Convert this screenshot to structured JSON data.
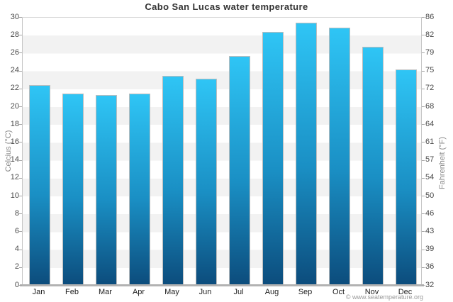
{
  "title": "Cabo San Lucas water temperature",
  "attribution": "© www.seatemperature.org",
  "y_axis_left": {
    "label": "Celcius (°C)",
    "ticks": [
      30,
      28,
      26,
      24,
      22,
      20,
      18,
      16,
      14,
      12,
      10,
      8,
      6,
      4,
      2,
      0
    ]
  },
  "y_axis_right": {
    "label": "Fahrenheit (°F)",
    "ticks": [
      86,
      82,
      79,
      75,
      72,
      68,
      64,
      61,
      57,
      54,
      50,
      46,
      43,
      39,
      36,
      32
    ]
  },
  "chart_data": {
    "type": "bar",
    "title": "Cabo San Lucas water temperature",
    "categories": [
      "Jan",
      "Feb",
      "Mar",
      "Apr",
      "May",
      "Jun",
      "Jul",
      "Aug",
      "Sep",
      "Oct",
      "Nov",
      "Dec"
    ],
    "values": [
      22.4,
      21.4,
      21.3,
      21.4,
      23.4,
      23.1,
      25.6,
      28.3,
      29.4,
      28.8,
      26.7,
      24.1
    ],
    "unit": "°C",
    "xlabel": "",
    "ylabel_left": "Celcius (°C)",
    "ylabel_right": "Fahrenheit (°F)",
    "ylim": [
      0,
      30
    ],
    "grid": "alternating 2°C horizontal bands, gray on 26-28 / 22-24 / ... stripes",
    "legend_position": "none",
    "colors": {
      "bar_gradient_top": "#2fc5f5",
      "bar_gradient_bottom": "#0c4c7c",
      "bar_border": "#bdbdbd",
      "band_gray": "#f2f2f2",
      "axis_line": "#b2b2b2",
      "tick_text": "#4a4a4a",
      "title_text": "#333333",
      "attribution_text": "#999999"
    }
  }
}
